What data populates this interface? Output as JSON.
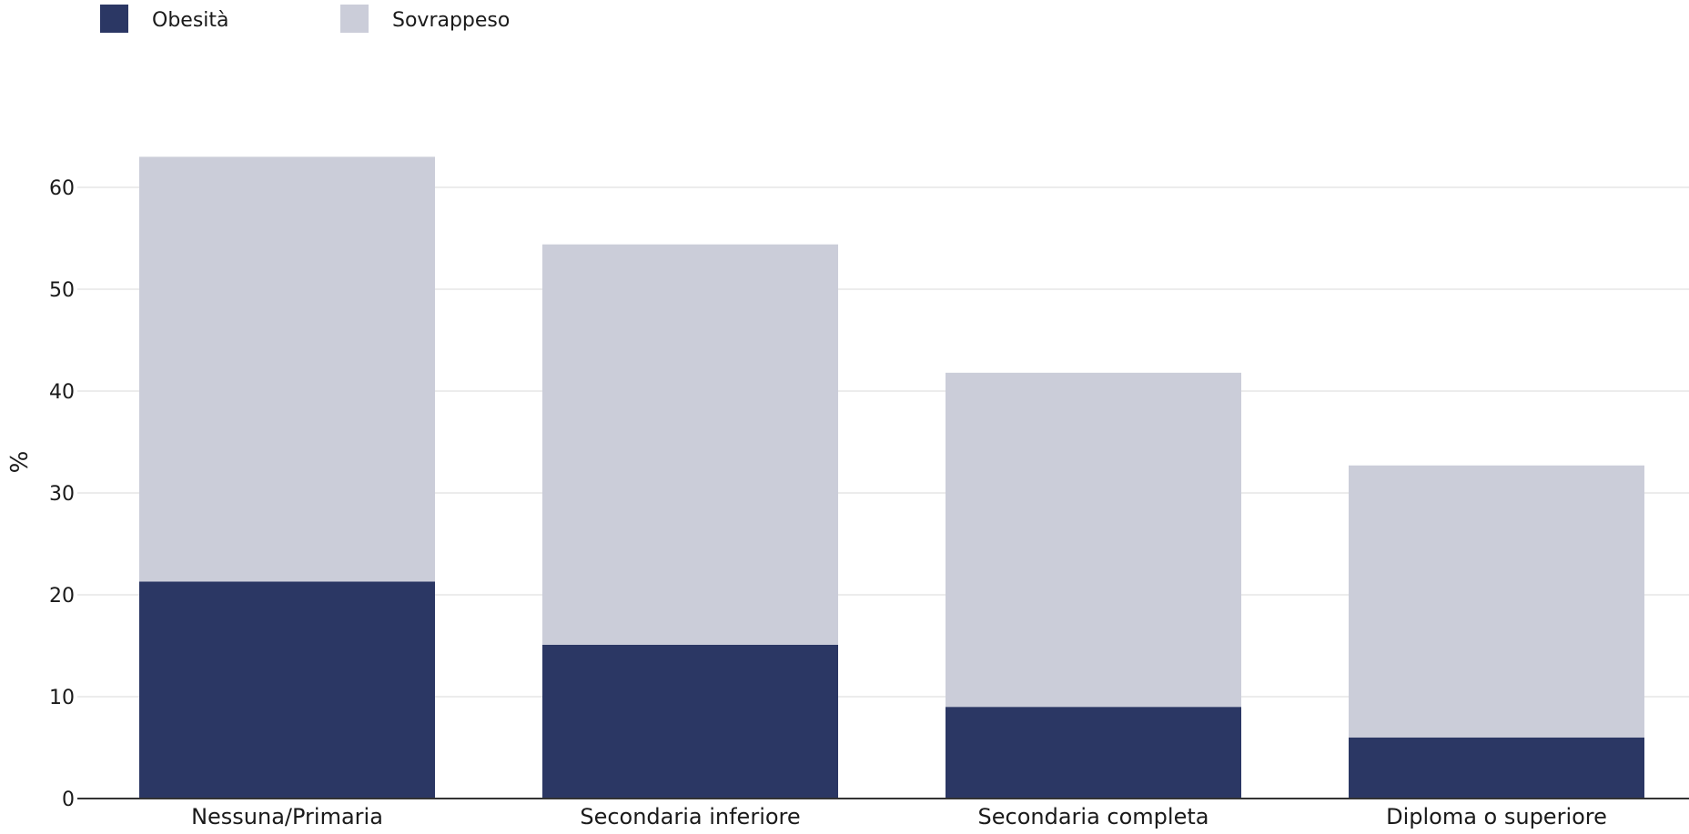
{
  "chart_data": {
    "type": "bar",
    "stacked": true,
    "title": "",
    "xlabel": "",
    "ylabel": "%",
    "categories": [
      "Nessuna/Primaria",
      "Secondaria inferiore",
      "Secondaria completa",
      "Diploma o superiore"
    ],
    "series": [
      {
        "name": "Obesità",
        "color": "#2b3764",
        "values": [
          21.3,
          15.1,
          9.0,
          6.0
        ]
      },
      {
        "name": "Sovrappeso",
        "color": "#cbcdd9",
        "values": [
          41.7,
          39.3,
          32.8,
          26.7
        ]
      }
    ],
    "ylim": [
      0,
      63
    ],
    "yticks": [
      0,
      10,
      20,
      30,
      40,
      50,
      60
    ],
    "grid": true,
    "legend_position": "top-left"
  }
}
